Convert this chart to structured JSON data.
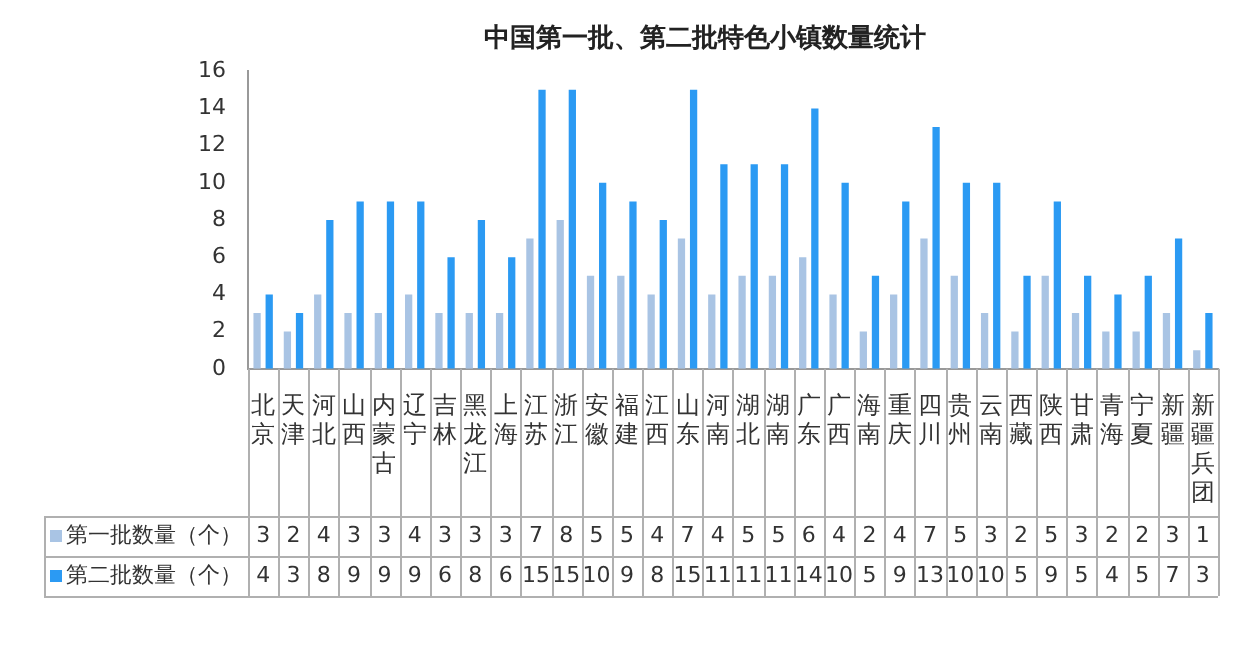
{
  "chart_data": {
    "type": "bar",
    "title": "中国第一批、第二批特色小镇数量统计",
    "categories": [
      "北京",
      "天津",
      "河北",
      "山西",
      "内蒙古",
      "辽宁",
      "吉林",
      "黑龙江",
      "上海",
      "江苏",
      "浙江",
      "安徽",
      "福建",
      "江西",
      "山东",
      "河南",
      "湖北",
      "湖南",
      "广东",
      "广西",
      "海南",
      "重庆",
      "四川",
      "贵州",
      "云南",
      "西藏",
      "陕西",
      "甘肃",
      "青海",
      "宁夏",
      "新疆",
      "新疆兵团"
    ],
    "series": [
      {
        "name": "第一批数量（个）",
        "color": "#a9c4e4",
        "values": [
          3,
          2,
          4,
          3,
          3,
          4,
          3,
          3,
          3,
          7,
          8,
          5,
          5,
          4,
          7,
          4,
          5,
          5,
          6,
          4,
          2,
          4,
          7,
          5,
          3,
          2,
          5,
          3,
          2,
          2,
          3,
          1
        ]
      },
      {
        "name": "第二批数量（个）",
        "color": "#2b9af3",
        "values": [
          4,
          3,
          8,
          9,
          9,
          9,
          6,
          8,
          6,
          15,
          15,
          10,
          9,
          8,
          15,
          11,
          11,
          11,
          14,
          10,
          5,
          9,
          13,
          10,
          10,
          5,
          9,
          5,
          4,
          5,
          7,
          3
        ]
      }
    ],
    "ylim": [
      0,
      16
    ],
    "yticks": [
      0,
      2,
      4,
      6,
      8,
      10,
      12,
      14,
      16
    ],
    "grid": false,
    "legend": "bottom left",
    "data_labels": true
  }
}
